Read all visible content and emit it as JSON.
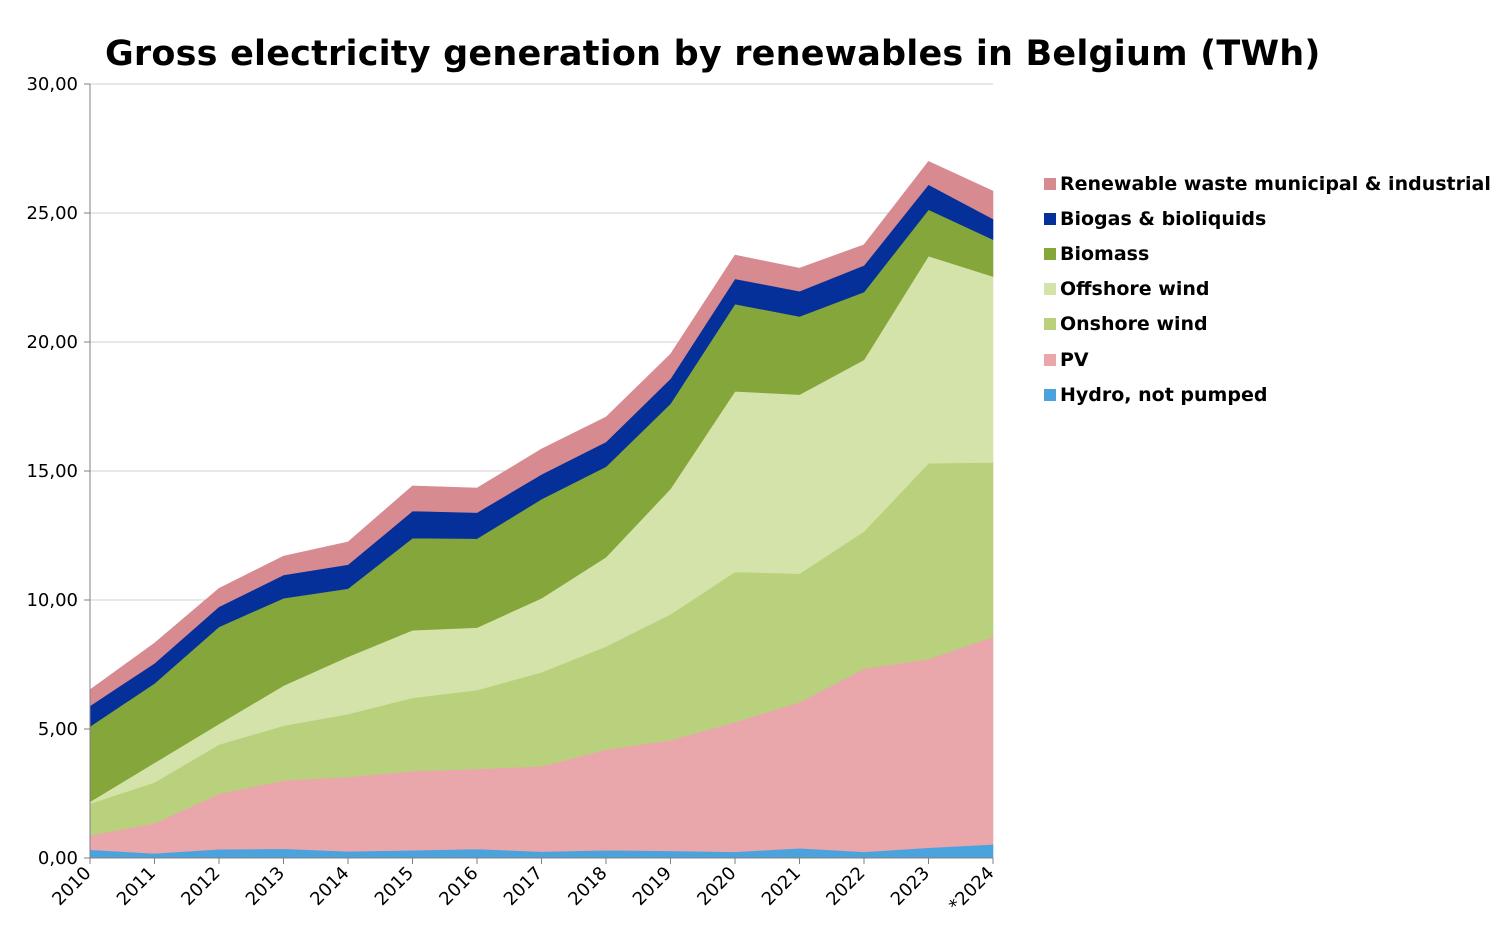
{
  "chart_data": {
    "type": "area",
    "stacked": true,
    "title": "Gross electricity generation by renewables in Belgium (TWh)",
    "xlabel": "",
    "ylabel": "",
    "categories": [
      "2010",
      "2011",
      "2012",
      "2013",
      "2014",
      "2015",
      "2016",
      "2017",
      "2018",
      "2019",
      "2020",
      "2021",
      "2022",
      "2023",
      "*2024"
    ],
    "y_ticks": [
      "0,00",
      "5,00",
      "10,00",
      "15,00",
      "20,00",
      "25,00",
      "30,00"
    ],
    "ylim": [
      0,
      30
    ],
    "grid": "horizontal",
    "legend_position": "right",
    "series": [
      {
        "name": "Hydro, not pumped",
        "color": "#4BA3DD",
        "values": [
          0.32,
          0.18,
          0.34,
          0.36,
          0.26,
          0.3,
          0.35,
          0.25,
          0.3,
          0.28,
          0.24,
          0.38,
          0.24,
          0.4,
          0.53
        ]
      },
      {
        "name": "PV",
        "color": "#EAA7AB",
        "values": [
          0.56,
          1.17,
          2.15,
          2.65,
          2.88,
          3.07,
          3.1,
          3.31,
          3.9,
          4.29,
          5.03,
          5.66,
          7.1,
          7.31,
          8.04
        ]
      },
      {
        "name": "Onshore wind",
        "color": "#B9D17C",
        "values": [
          1.23,
          1.58,
          1.91,
          2.12,
          2.44,
          2.84,
          3.06,
          3.64,
          4.0,
          4.88,
          5.82,
          4.98,
          5.32,
          7.59,
          6.76
        ]
      },
      {
        "name": "Offshore wind",
        "color": "#D4E3A9",
        "values": [
          0.07,
          0.76,
          0.8,
          1.55,
          2.22,
          2.62,
          2.42,
          2.87,
          3.46,
          4.86,
          7.0,
          6.94,
          6.65,
          8.03,
          7.21
        ]
      },
      {
        "name": "Biomass",
        "color": "#84A63A",
        "values": [
          2.92,
          3.08,
          3.76,
          3.39,
          2.64,
          3.57,
          3.45,
          3.84,
          3.51,
          3.3,
          3.38,
          3.03,
          2.63,
          1.8,
          1.43
        ]
      },
      {
        "name": "Biogas & bioliquids",
        "color": "#05309A",
        "values": [
          0.8,
          0.78,
          0.78,
          0.9,
          0.93,
          1.05,
          1.01,
          0.96,
          0.96,
          0.97,
          0.98,
          0.98,
          1.03,
          0.97,
          0.8
        ]
      },
      {
        "name": "Renewable waste municipal & industrial",
        "color": "#D78B91",
        "values": [
          0.62,
          0.78,
          0.71,
          0.73,
          0.88,
          0.97,
          0.95,
          0.98,
          0.96,
          0.95,
          0.92,
          0.89,
          0.8,
          0.9,
          1.08
        ]
      }
    ]
  }
}
